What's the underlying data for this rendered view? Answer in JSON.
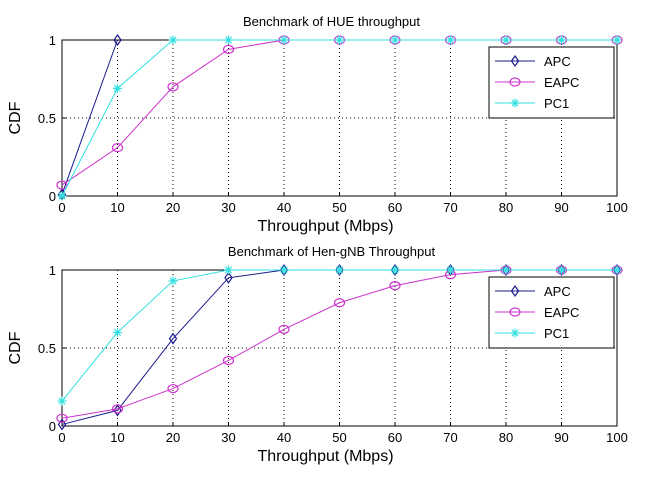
{
  "chart_data": [
    {
      "type": "line",
      "title": "Benchmark of HUE throughput",
      "xlabel": "Throughput (Mbps)",
      "ylabel": "CDF",
      "xlim": [
        0,
        100
      ],
      "ylim": [
        0,
        1
      ],
      "xticks": [
        0,
        10,
        20,
        30,
        40,
        50,
        60,
        70,
        80,
        90,
        100
      ],
      "yticks": [
        0,
        0.5,
        1
      ],
      "grid": true,
      "legend_position": "top-right",
      "series": [
        {
          "name": "APC",
          "color": "#1a1a8c",
          "marker": "diamond",
          "x": [
            0,
            10
          ],
          "y": [
            0.01,
            1.0
          ]
        },
        {
          "name": "EAPC",
          "color": "#cc33cc",
          "marker": "circle",
          "x": [
            0,
            10,
            20,
            30,
            40,
            50,
            60,
            70,
            80,
            90,
            100
          ],
          "y": [
            0.07,
            0.31,
            0.7,
            0.94,
            1.0,
            1.0,
            1.0,
            1.0,
            1.0,
            1.0,
            1.0
          ]
        },
        {
          "name": "PC1",
          "color": "#33e0e0",
          "marker": "star",
          "x": [
            0,
            10,
            20,
            30,
            40,
            50,
            60,
            70,
            80,
            90,
            100
          ],
          "y": [
            0.0,
            0.69,
            1.0,
            1.0,
            1.0,
            1.0,
            1.0,
            1.0,
            1.0,
            1.0,
            1.0
          ]
        }
      ]
    },
    {
      "type": "line",
      "title": "Benchmark of Hen-gNB Throughput",
      "xlabel": "Throughput (Mbps)",
      "ylabel": "CDF",
      "xlim": [
        0,
        100
      ],
      "ylim": [
        0,
        1
      ],
      "xticks": [
        0,
        10,
        20,
        30,
        40,
        50,
        60,
        70,
        80,
        90,
        100
      ],
      "yticks": [
        0,
        0.5,
        1
      ],
      "grid": true,
      "legend_position": "top-right",
      "series": [
        {
          "name": "APC",
          "color": "#1a1a8c",
          "marker": "diamond",
          "x": [
            0,
            10,
            20,
            30,
            40,
            50,
            60,
            70,
            80,
            90,
            100
          ],
          "y": [
            0.01,
            0.1,
            0.56,
            0.95,
            1.0,
            1.0,
            1.0,
            1.0,
            1.0,
            1.0,
            1.0
          ]
        },
        {
          "name": "EAPC",
          "color": "#cc33cc",
          "marker": "circle",
          "x": [
            0,
            10,
            20,
            30,
            40,
            50,
            60,
            70,
            80,
            90,
            100
          ],
          "y": [
            0.05,
            0.11,
            0.24,
            0.42,
            0.62,
            0.79,
            0.9,
            0.97,
            1.0,
            1.0,
            1.0
          ]
        },
        {
          "name": "PC1",
          "color": "#33e0e0",
          "marker": "star",
          "x": [
            0,
            10,
            20,
            30,
            40,
            50,
            60,
            70,
            80,
            90,
            100
          ],
          "y": [
            0.16,
            0.6,
            0.93,
            1.0,
            1.0,
            1.0,
            1.0,
            1.0,
            1.0,
            1.0,
            1.0
          ]
        }
      ]
    }
  ]
}
